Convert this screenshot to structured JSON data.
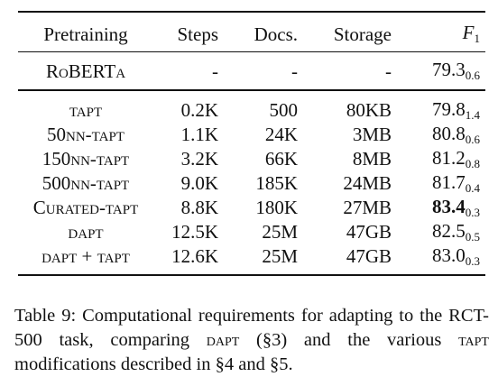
{
  "table": {
    "headers": {
      "pretraining": "Pretraining",
      "steps": "Steps",
      "docs": "Docs.",
      "storage": "Storage",
      "f1_main": "F",
      "f1_sub": "1"
    },
    "baseline": {
      "name": "RoBERTa",
      "steps": "-",
      "docs": "-",
      "storage": "-",
      "f1": "79.3",
      "std": "0.6"
    },
    "rows": [
      {
        "name": "tapt",
        "steps": "0.2K",
        "docs": "500",
        "storage": "80KB",
        "f1": "79.8",
        "std": "1.4"
      },
      {
        "name": "50nn-tapt",
        "steps": "1.1K",
        "docs": "24K",
        "storage": "3MB",
        "f1": "80.8",
        "std": "0.6"
      },
      {
        "name": "150nn-tapt",
        "steps": "3.2K",
        "docs": "66K",
        "storage": "8MB",
        "f1": "81.2",
        "std": "0.8"
      },
      {
        "name": "500nn-tapt",
        "steps": "9.0K",
        "docs": "185K",
        "storage": "24MB",
        "f1": "81.7",
        "std": "0.4"
      },
      {
        "name": "Curated-tapt",
        "steps": "8.8K",
        "docs": "180K",
        "storage": "27MB",
        "f1": "83.4",
        "std": "0.3"
      },
      {
        "name": "dapt",
        "steps": "12.5K",
        "docs": "25M",
        "storage": "47GB",
        "f1": "82.5",
        "std": "0.5"
      },
      {
        "name": "dapt + tapt",
        "steps": "12.6K",
        "docs": "25M",
        "storage": "47GB",
        "f1": "83.0",
        "std": "0.3"
      }
    ]
  },
  "caption": {
    "t1": "Table 9: Computational requirements for adapting to the RCT-500 task, comparing ",
    "dapt": "dapt",
    "t2": " (§3) and the various ",
    "tapt": "tapt",
    "t3": " modifications described in §4 and §5."
  }
}
